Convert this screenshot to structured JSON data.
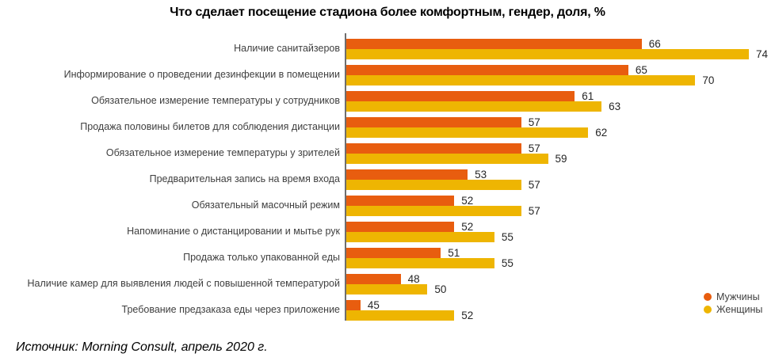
{
  "title": "Что сделает посещение стадиона более комфортным, гендер, доля, %",
  "source": "Источник: Morning Consult, апрель 2020 г.",
  "colors": {
    "men": "#E85D0F",
    "women": "#EEB502",
    "axis": "#6E6E6E"
  },
  "chart_data": {
    "type": "bar",
    "orientation": "horizontal",
    "title": "Что сделает посещение стадиона более комфортным, гендер, доля, %",
    "categories": [
      "Наличие санитайзеров",
      "Информирование о проведении дезинфекции в помещении",
      "Обязательное измерение температуры у сотрудников",
      "Продажа половины билетов для соблюдения дистанции",
      "Обязательное измерение температуры у зрителей",
      "Предварительная запись на время входа",
      "Обязательный масочный режим",
      "Напоминание о дистанцировании и мытье рук",
      "Продажа только упакованной еды",
      "Наличие камер для выявления людей с повышенной температурой",
      "Требование предзаказа еды через приложение"
    ],
    "series": [
      {
        "name": "Мужчины",
        "color": "#E85D0F",
        "values": [
          66,
          65,
          61,
          57,
          57,
          53,
          52,
          52,
          51,
          48,
          45
        ]
      },
      {
        "name": "Женщины",
        "color": "#EEB502",
        "values": [
          74,
          70,
          63,
          62,
          59,
          57,
          57,
          55,
          55,
          50,
          52
        ]
      }
    ],
    "unit": "%",
    "value_labels": true,
    "xlim": [
      44,
      78
    ],
    "grid": false,
    "legend_position": "bottom-right"
  }
}
